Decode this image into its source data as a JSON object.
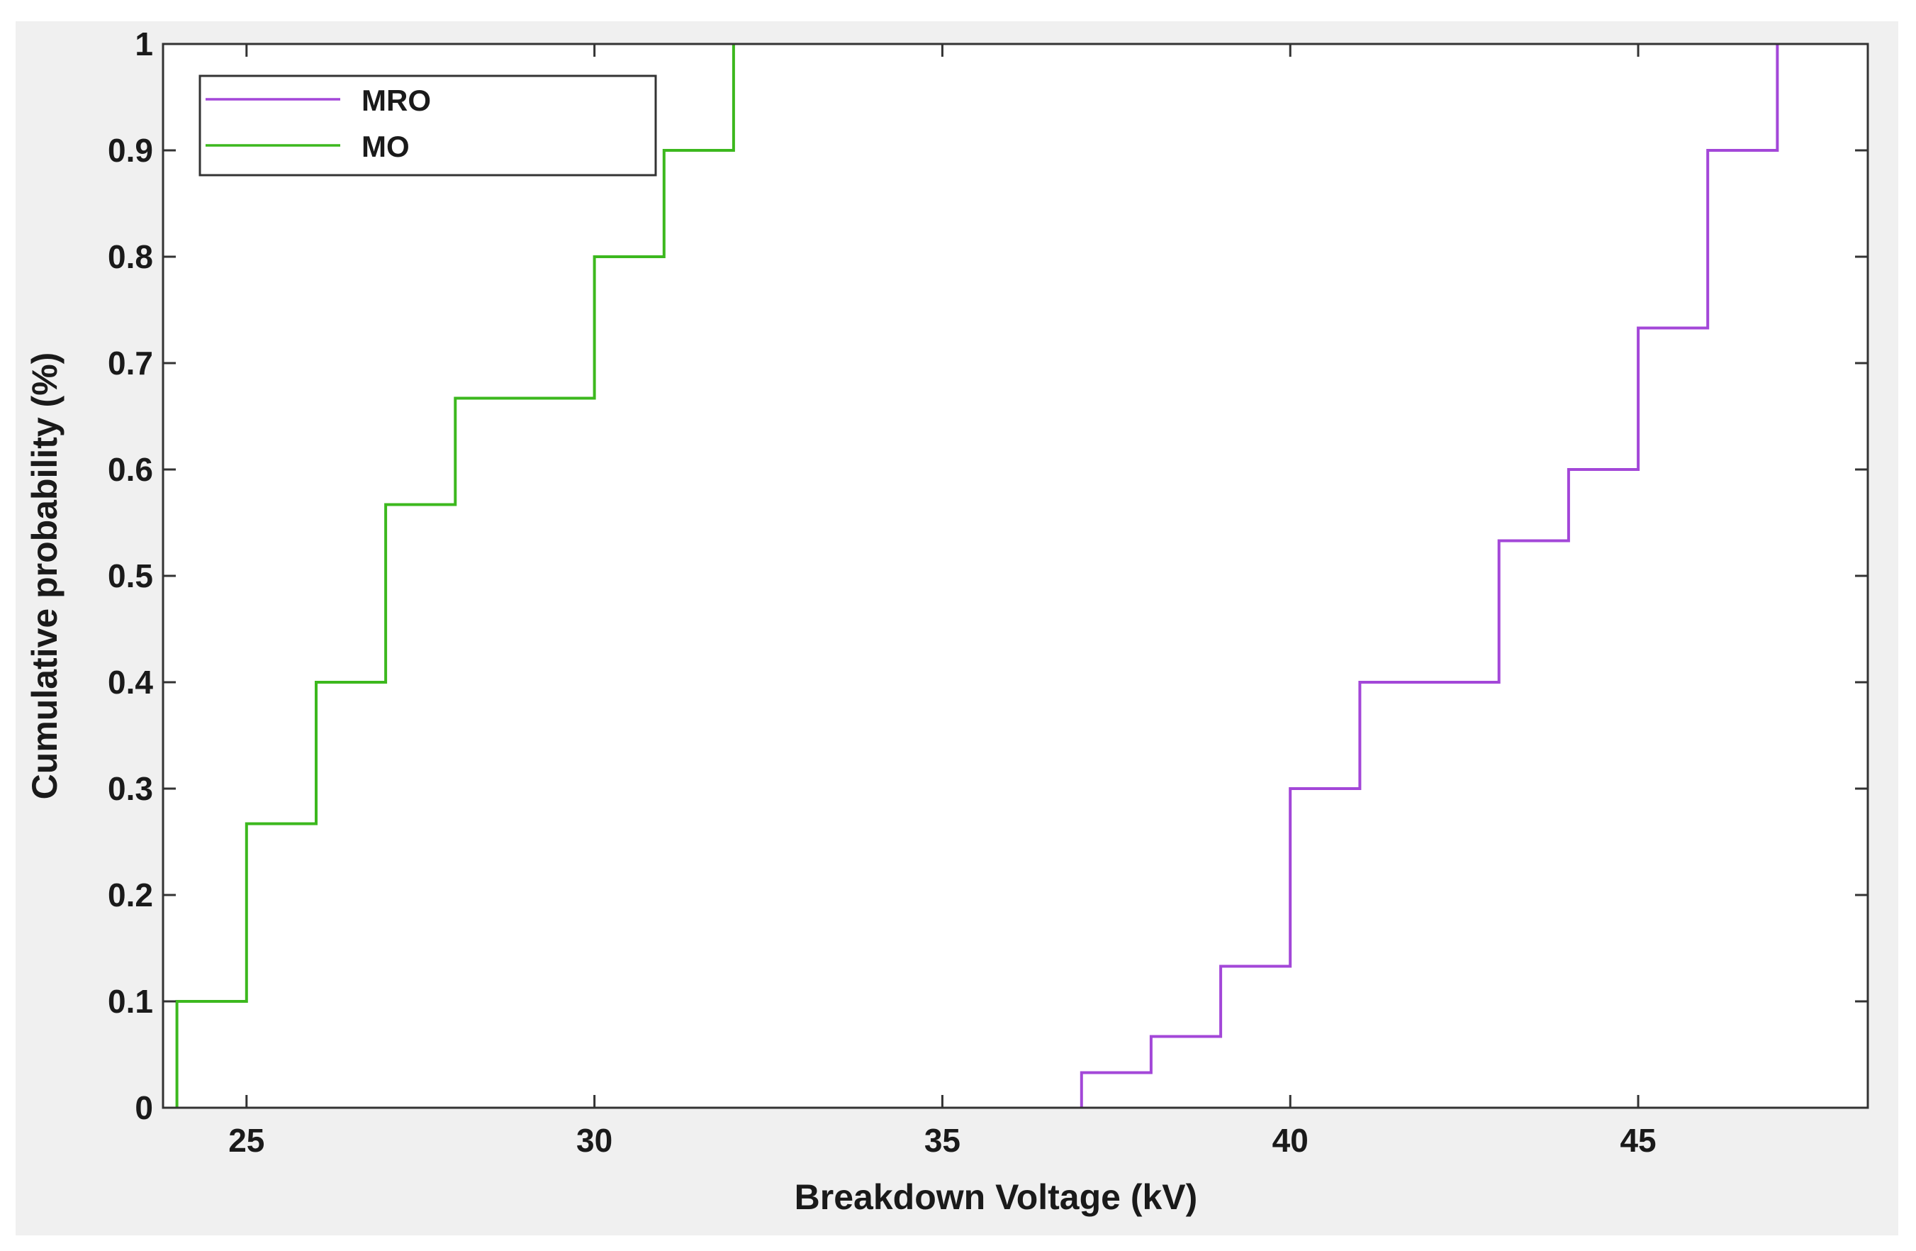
{
  "chart_data": {
    "type": "line",
    "subtype": "step (empirical CDF)",
    "xlabel": "Breakdown Voltage (kV)",
    "ylabel": "Cumulative probability (%)",
    "xlim": [
      23.8,
      48.3
    ],
    "ylim": [
      0,
      1
    ],
    "x_ticks": [
      {
        "value": 25,
        "label": "25"
      },
      {
        "value": 30,
        "label": "30"
      },
      {
        "value": 35,
        "label": "35"
      },
      {
        "value": 40,
        "label": "40"
      },
      {
        "value": 45,
        "label": "45"
      }
    ],
    "y_ticks": [
      {
        "value": 0,
        "label": "0"
      },
      {
        "value": 0.1,
        "label": "0.1"
      },
      {
        "value": 0.2,
        "label": "0.2"
      },
      {
        "value": 0.3,
        "label": "0.3"
      },
      {
        "value": 0.4,
        "label": "0.4"
      },
      {
        "value": 0.5,
        "label": "0.5"
      },
      {
        "value": 0.6,
        "label": "0.6"
      },
      {
        "value": 0.7,
        "label": "0.7"
      },
      {
        "value": 0.8,
        "label": "0.8"
      },
      {
        "value": 0.9,
        "label": "0.9"
      },
      {
        "value": 1,
        "label": "1"
      }
    ],
    "grid": false,
    "legend_position": "top-left",
    "series": [
      {
        "name": "MRO",
        "color": "#a347d8",
        "points": [
          [
            37,
            0
          ],
          [
            37,
            0.033
          ],
          [
            38,
            0.033
          ],
          [
            38,
            0.067
          ],
          [
            39,
            0.067
          ],
          [
            39,
            0.133
          ],
          [
            40,
            0.133
          ],
          [
            40,
            0.3
          ],
          [
            41,
            0.3
          ],
          [
            41,
            0.4
          ],
          [
            43,
            0.4
          ],
          [
            43,
            0.533
          ],
          [
            44,
            0.533
          ],
          [
            44,
            0.6
          ],
          [
            45,
            0.6
          ],
          [
            45,
            0.733
          ],
          [
            46,
            0.733
          ],
          [
            46,
            0.9
          ],
          [
            47,
            0.9
          ],
          [
            47,
            1
          ]
        ]
      },
      {
        "name": "MO",
        "color": "#3cb81e",
        "points": [
          [
            24,
            0
          ],
          [
            24,
            0.1
          ],
          [
            25,
            0.1
          ],
          [
            25,
            0.267
          ],
          [
            26,
            0.267
          ],
          [
            26,
            0.4
          ],
          [
            27,
            0.4
          ],
          [
            27,
            0.567
          ],
          [
            28,
            0.567
          ],
          [
            28,
            0.667
          ],
          [
            30,
            0.667
          ],
          [
            30,
            0.8
          ],
          [
            31,
            0.8
          ],
          [
            31,
            0.9
          ],
          [
            32,
            0.9
          ],
          [
            32,
            1
          ]
        ]
      }
    ]
  }
}
